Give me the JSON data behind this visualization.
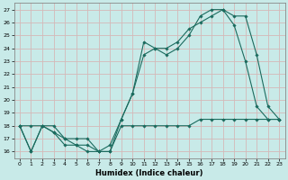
{
  "xlabel": "Humidex (Indice chaleur)",
  "background_color": "#c8eae8",
  "grid_color": "#d4b8b8",
  "line_color": "#1a6b5e",
  "xlim": [
    -0.5,
    23.5
  ],
  "ylim": [
    15.5,
    27.5
  ],
  "xticks": [
    0,
    1,
    2,
    3,
    4,
    5,
    6,
    7,
    8,
    9,
    10,
    11,
    12,
    13,
    14,
    15,
    16,
    17,
    18,
    19,
    20,
    21,
    22,
    23
  ],
  "yticks": [
    16,
    17,
    18,
    19,
    20,
    21,
    22,
    23,
    24,
    25,
    26,
    27
  ],
  "line1_x": [
    0,
    1,
    2,
    3,
    4,
    5,
    6,
    7,
    8,
    9,
    10,
    11,
    12,
    13,
    14,
    15,
    16,
    17,
    18,
    19,
    20,
    21,
    22,
    23
  ],
  "line1_y": [
    18,
    16,
    18,
    17.5,
    16.5,
    16.5,
    16,
    16,
    16,
    18.5,
    20.5,
    24.5,
    24,
    23.5,
    24,
    25,
    26.5,
    27,
    27,
    25.8,
    23,
    19.5,
    18.5,
    18.5
  ],
  "line2_x": [
    0,
    1,
    2,
    3,
    4,
    5,
    6,
    7,
    8,
    9,
    10,
    11,
    12,
    13,
    14,
    15,
    16,
    17,
    18,
    19,
    20,
    21,
    22,
    23
  ],
  "line2_y": [
    18,
    16,
    18,
    18,
    17,
    16.5,
    16.5,
    16,
    16.5,
    18.5,
    20.5,
    23.5,
    24,
    24,
    24.5,
    25.5,
    26,
    26.5,
    27,
    26.5,
    26.5,
    23.5,
    19.5,
    18.5
  ],
  "line3_x": [
    0,
    1,
    2,
    3,
    4,
    5,
    6,
    7,
    8,
    9,
    10,
    11,
    12,
    13,
    14,
    15,
    16,
    17,
    18,
    19,
    20,
    21,
    22,
    23
  ],
  "line3_y": [
    18,
    18,
    18,
    17.5,
    17,
    17,
    17,
    16,
    16,
    18,
    18,
    18,
    18,
    18,
    18,
    18,
    18.5,
    18.5,
    18.5,
    18.5,
    18.5,
    18.5,
    18.5,
    18.5
  ]
}
